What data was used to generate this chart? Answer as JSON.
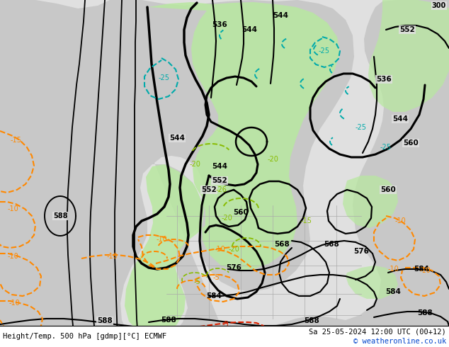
{
  "title_left": "Height/Temp. 500 hPa [gdmp][°C] ECMWF",
  "title_right": "Sa 25-05-2024 12:00 UTC (00+12)",
  "copyright": "© weatheronline.co.uk",
  "bg_color": "#e0e0e0",
  "ocean_color": "#e0e0e0",
  "land_color": "#c8c8c8",
  "green_color": "#b8e8a0",
  "fig_width": 6.34,
  "fig_height": 4.9,
  "black_lw": 2.2,
  "thin_lw": 1.4
}
